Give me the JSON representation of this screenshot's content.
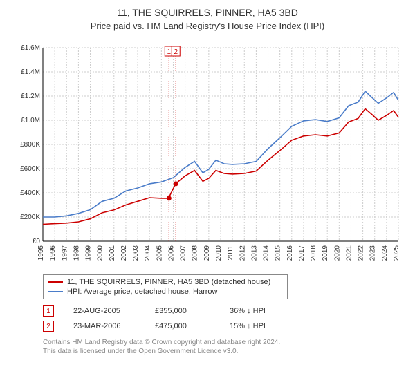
{
  "header": {
    "title": "11, THE SQUIRRELS, PINNER, HA5 3BD",
    "subtitle": "Price paid vs. HM Land Registry's House Price Index (HPI)"
  },
  "chart": {
    "type": "line",
    "background_color": "#ffffff",
    "grid_color": "#cccccc",
    "axis_color": "#000000",
    "tick_fontsize": 10,
    "ylim": [
      0,
      1600000
    ],
    "ytick_step": 200000,
    "yticks": [
      "£0",
      "£200K",
      "£400K",
      "£600K",
      "£800K",
      "£1.0M",
      "£1.2M",
      "£1.4M",
      "£1.6M"
    ],
    "xlim": [
      1995,
      2025
    ],
    "xticks": [
      1995,
      1996,
      1997,
      1998,
      1999,
      2000,
      2001,
      2002,
      2003,
      2004,
      2005,
      2006,
      2007,
      2008,
      2009,
      2010,
      2011,
      2012,
      2013,
      2014,
      2015,
      2016,
      2017,
      2018,
      2019,
      2020,
      2021,
      2022,
      2023,
      2024,
      2025
    ],
    "series": [
      {
        "name": "red",
        "color": "#cc0000",
        "line_width": 1.6,
        "data": [
          [
            1995,
            140000
          ],
          [
            1996,
            145000
          ],
          [
            1997,
            150000
          ],
          [
            1998,
            160000
          ],
          [
            1999,
            185000
          ],
          [
            2000,
            235000
          ],
          [
            2001,
            258000
          ],
          [
            2002,
            300000
          ],
          [
            2003,
            330000
          ],
          [
            2004,
            360000
          ],
          [
            2005,
            355000
          ],
          [
            2005.6,
            355000
          ],
          [
            2006.2,
            475000
          ],
          [
            2007,
            540000
          ],
          [
            2007.8,
            585000
          ],
          [
            2008.5,
            495000
          ],
          [
            2009,
            520000
          ],
          [
            2009.6,
            585000
          ],
          [
            2010.3,
            560000
          ],
          [
            2011,
            555000
          ],
          [
            2012,
            560000
          ],
          [
            2013,
            580000
          ],
          [
            2014,
            670000
          ],
          [
            2015,
            750000
          ],
          [
            2016,
            835000
          ],
          [
            2017,
            870000
          ],
          [
            2018,
            880000
          ],
          [
            2019,
            870000
          ],
          [
            2020,
            895000
          ],
          [
            2020.8,
            985000
          ],
          [
            2021.6,
            1015000
          ],
          [
            2022.2,
            1095000
          ],
          [
            2022.8,
            1045000
          ],
          [
            2023.3,
            1000000
          ],
          [
            2024,
            1040000
          ],
          [
            2024.6,
            1080000
          ],
          [
            2025,
            1025000
          ]
        ]
      },
      {
        "name": "blue",
        "color": "#4a7cc9",
        "line_width": 1.6,
        "data": [
          [
            1995,
            200000
          ],
          [
            1996,
            200000
          ],
          [
            1997,
            210000
          ],
          [
            1998,
            230000
          ],
          [
            1999,
            260000
          ],
          [
            2000,
            330000
          ],
          [
            2001,
            355000
          ],
          [
            2002,
            415000
          ],
          [
            2003,
            440000
          ],
          [
            2004,
            475000
          ],
          [
            2005,
            490000
          ],
          [
            2006,
            525000
          ],
          [
            2007,
            610000
          ],
          [
            2007.8,
            660000
          ],
          [
            2008.5,
            565000
          ],
          [
            2009,
            595000
          ],
          [
            2009.6,
            670000
          ],
          [
            2010.3,
            640000
          ],
          [
            2011,
            635000
          ],
          [
            2012,
            640000
          ],
          [
            2013,
            660000
          ],
          [
            2014,
            765000
          ],
          [
            2015,
            855000
          ],
          [
            2016,
            950000
          ],
          [
            2017,
            995000
          ],
          [
            2018,
            1005000
          ],
          [
            2019,
            990000
          ],
          [
            2020,
            1020000
          ],
          [
            2020.8,
            1120000
          ],
          [
            2021.6,
            1150000
          ],
          [
            2022.2,
            1240000
          ],
          [
            2022.8,
            1185000
          ],
          [
            2023.3,
            1140000
          ],
          [
            2024,
            1185000
          ],
          [
            2024.6,
            1230000
          ],
          [
            2025,
            1165000
          ]
        ]
      }
    ],
    "markers": [
      {
        "label": "1",
        "x": 2005.64,
        "y": 355000,
        "box_color": "#cc0000",
        "line_color": "#cc0000"
      },
      {
        "label": "2",
        "x": 2006.22,
        "y": 475000,
        "box_color": "#cc0000",
        "line_color": "#cc0000"
      }
    ]
  },
  "legend": {
    "items": [
      {
        "label": "11, THE SQUIRRELS, PINNER, HA5 3BD (detached house)",
        "color": "#cc0000"
      },
      {
        "label": "HPI: Average price, detached house, Harrow",
        "color": "#4a7cc9"
      }
    ]
  },
  "sales": [
    {
      "num": "1",
      "date": "22-AUG-2005",
      "price": "£355,000",
      "delta": "36% ↓ HPI"
    },
    {
      "num": "2",
      "date": "23-MAR-2006",
      "price": "£475,000",
      "delta": "15% ↓ HPI"
    }
  ],
  "footer": {
    "line1": "Contains HM Land Registry data © Crown copyright and database right 2024.",
    "line2": "This data is licensed under the Open Government Licence v3.0."
  }
}
